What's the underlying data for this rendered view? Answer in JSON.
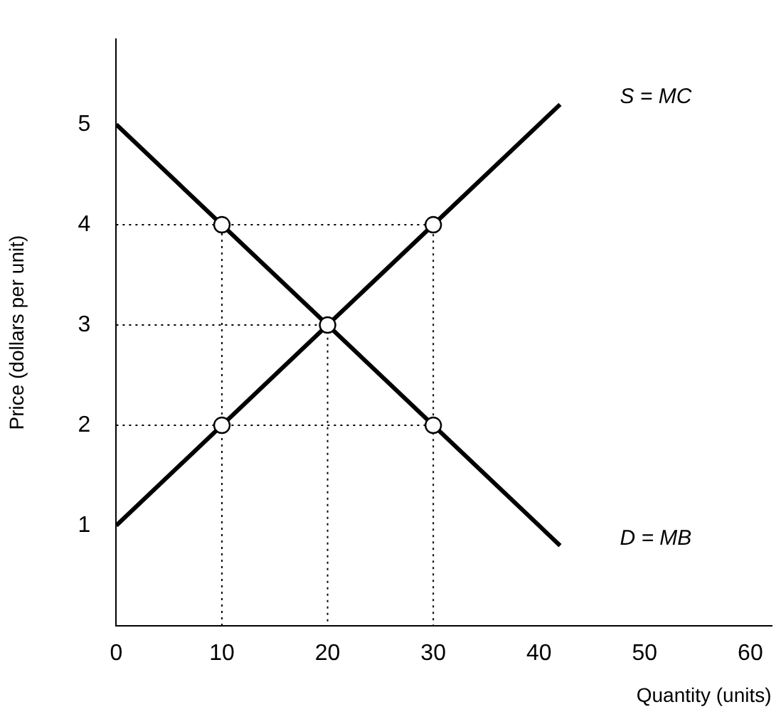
{
  "chart_data": {
    "type": "line",
    "xlabel": "Quantity (units)",
    "ylabel": "Price (dollars per unit)",
    "xlim": [
      0,
      62
    ],
    "ylim": [
      0,
      5.85
    ],
    "xticks": [
      0,
      10,
      20,
      30,
      40,
      50,
      60
    ],
    "yticks": [
      1,
      2,
      3,
      4,
      5
    ],
    "grid": false,
    "legend": false,
    "series": [
      {
        "name": "S = MC",
        "color": "#000000",
        "x": [
          0,
          42
        ],
        "values": [
          1,
          5.2
        ],
        "marker": "none",
        "line_style": "solid"
      },
      {
        "name": "D = MB",
        "color": "#000000",
        "x": [
          0,
          42
        ],
        "values": [
          5,
          0.8
        ],
        "marker": "none",
        "line_style": "solid"
      },
      {
        "color": "#000000",
        "x": [
          0,
          30,
          30
        ],
        "values": [
          4,
          4,
          0
        ],
        "marker": "none",
        "line_style": "dotted"
      },
      {
        "color": "#000000",
        "x": [
          0,
          20,
          20
        ],
        "values": [
          3,
          3,
          0
        ],
        "marker": "none",
        "line_style": "dotted"
      },
      {
        "color": "#000000",
        "x": [
          0,
          30
        ],
        "values": [
          2,
          2
        ],
        "marker": "none",
        "line_style": "dotted"
      },
      {
        "color": "#000000",
        "x": [
          10,
          10
        ],
        "values": [
          0,
          4
        ],
        "marker": "none",
        "line_style": "dotted"
      },
      {
        "type": "scatter",
        "color": "#000000",
        "x": [
          10,
          30,
          20,
          10,
          30
        ],
        "values": [
          4,
          4,
          3,
          2,
          2
        ],
        "marker": "circle"
      }
    ]
  }
}
